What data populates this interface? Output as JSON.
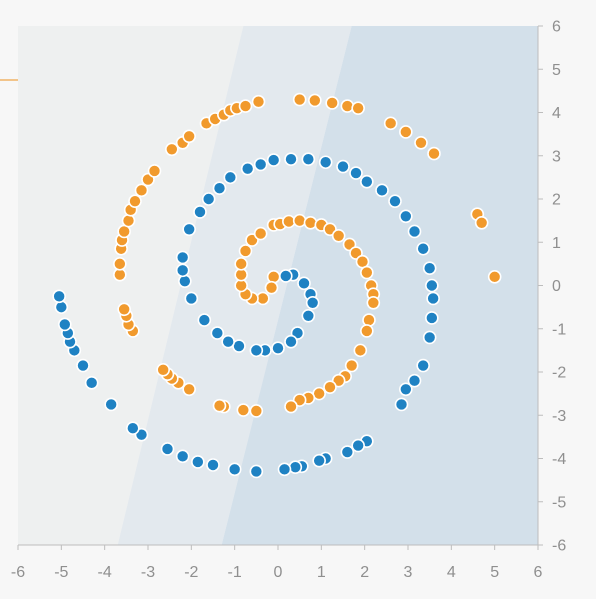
{
  "colors": {
    "series_blue": "#1f82c3",
    "series_orange": "#f19a2d",
    "region_light": "#eef0f0",
    "region_mid": "#e3e9ee",
    "region_dark": "#d3e0ea",
    "page_bg": "#f7f7f7",
    "tick_text": "#8f8f8f",
    "axis_stroke": "#bdbdbd",
    "left_accent": "#f2c48a"
  },
  "chart_data": {
    "type": "scatter",
    "title": "",
    "xlabel": "",
    "ylabel": "",
    "xlim": [
      -6,
      6
    ],
    "ylim": [
      -6,
      6
    ],
    "x_ticks": [
      "-6",
      "-5",
      "-4",
      "-3",
      "-2",
      "-1",
      "0",
      "1",
      "2",
      "3",
      "4",
      "5",
      "6"
    ],
    "y_ticks": [
      "6",
      "5",
      "4",
      "3",
      "2",
      "1",
      "0",
      "-1",
      "-2",
      "-3",
      "-4",
      "-5",
      "-6"
    ],
    "x_axis_position": "bottom",
    "y_axis_position": "right",
    "grid": false,
    "legend": "none",
    "background_regions": [
      {
        "description": "light",
        "boundary_x_at_top": -0.8,
        "boundary_x_at_bottom": -3.7
      },
      {
        "description": "mid",
        "boundary_x_at_top": 1.7,
        "boundary_x_at_bottom": -1.3
      },
      {
        "description": "dark",
        "boundary_x_at_top": 6.0,
        "boundary_x_at_bottom": 6.0
      }
    ],
    "series": [
      {
        "color": "#1f82c3",
        "points": [
          [
            0.35,
            0.25
          ],
          [
            0.18,
            0.22
          ],
          [
            0.6,
            0.05
          ],
          [
            0.75,
            -0.2
          ],
          [
            0.8,
            -0.4
          ],
          [
            0.7,
            -0.7
          ],
          [
            0.45,
            -1.1
          ],
          [
            0.3,
            -1.3
          ],
          [
            0,
            -1.45
          ],
          [
            -0.3,
            -1.5
          ],
          [
            -0.5,
            -1.5
          ],
          [
            -0.9,
            -1.4
          ],
          [
            -1.15,
            -1.3
          ],
          [
            -1.4,
            -1.1
          ],
          [
            -1.7,
            -0.8
          ],
          [
            -2,
            -0.3
          ],
          [
            -2.15,
            0.1
          ],
          [
            -2.2,
            0.35
          ],
          [
            -2.2,
            0.65
          ],
          [
            -2.05,
            1.3
          ],
          [
            -1.8,
            1.7
          ],
          [
            -1.6,
            2
          ],
          [
            -1.35,
            2.25
          ],
          [
            -1.1,
            2.5
          ],
          [
            -0.7,
            2.7
          ],
          [
            -0.4,
            2.8
          ],
          [
            -0.1,
            2.9
          ],
          [
            0.3,
            2.92
          ],
          [
            0.7,
            2.92
          ],
          [
            1.1,
            2.85
          ],
          [
            1.5,
            2.75
          ],
          [
            1.8,
            2.6
          ],
          [
            2.05,
            2.4
          ],
          [
            2.4,
            2.2
          ],
          [
            2.7,
            1.95
          ],
          [
            2.95,
            1.6
          ],
          [
            3.15,
            1.25
          ],
          [
            3.35,
            0.85
          ],
          [
            3.5,
            0.4
          ],
          [
            3.55,
            0
          ],
          [
            3.58,
            -0.3
          ],
          [
            3.55,
            -0.75
          ],
          [
            3.5,
            -1.2
          ],
          [
            3.35,
            -1.85
          ],
          [
            3.15,
            -2.2
          ],
          [
            2.95,
            -2.4
          ],
          [
            2.85,
            -2.75
          ],
          [
            2.05,
            -3.6
          ],
          [
            1.85,
            -3.7
          ],
          [
            1.6,
            -3.85
          ],
          [
            1.1,
            -4
          ],
          [
            0.95,
            -4.05
          ],
          [
            0.55,
            -4.18
          ],
          [
            0.4,
            -4.2
          ],
          [
            0.15,
            -4.25
          ],
          [
            -0.5,
            -4.3
          ],
          [
            -1,
            -4.25
          ],
          [
            -1.5,
            -4.15
          ],
          [
            -1.85,
            -4.08
          ],
          [
            -2.2,
            -3.95
          ],
          [
            -2.55,
            -3.78
          ],
          [
            -3.15,
            -3.45
          ],
          [
            -3.35,
            -3.3
          ],
          [
            -3.85,
            -2.75
          ],
          [
            -4.3,
            -2.25
          ],
          [
            -4.5,
            -1.85
          ],
          [
            -4.7,
            -1.5
          ],
          [
            -4.8,
            -1.3
          ],
          [
            -4.85,
            -1.1
          ],
          [
            -4.92,
            -0.9
          ],
          [
            -5,
            -0.5
          ],
          [
            -5.05,
            -0.25
          ]
        ]
      },
      {
        "color": "#f19a2d",
        "points": [
          [
            -0.1,
            0.2
          ],
          [
            -0.15,
            -0.05
          ],
          [
            -0.35,
            -0.3
          ],
          [
            -0.6,
            -0.3
          ],
          [
            -0.75,
            -0.2
          ],
          [
            -0.85,
            0
          ],
          [
            -0.85,
            0.25
          ],
          [
            -0.85,
            0.5
          ],
          [
            -0.75,
            0.8
          ],
          [
            -0.6,
            1.05
          ],
          [
            -0.4,
            1.2
          ],
          [
            -0.1,
            1.4
          ],
          [
            0.05,
            1.42
          ],
          [
            0.25,
            1.48
          ],
          [
            0.5,
            1.5
          ],
          [
            0.75,
            1.45
          ],
          [
            1,
            1.4
          ],
          [
            1.2,
            1.3
          ],
          [
            1.4,
            1.15
          ],
          [
            1.65,
            0.95
          ],
          [
            1.8,
            0.75
          ],
          [
            1.95,
            0.55
          ],
          [
            2.05,
            0.3
          ],
          [
            2.15,
            0
          ],
          [
            2.2,
            -0.2
          ],
          [
            2.2,
            -0.4
          ],
          [
            2.1,
            -0.8
          ],
          [
            2.05,
            -1.05
          ],
          [
            1.9,
            -1.5
          ],
          [
            1.7,
            -1.85
          ],
          [
            1.55,
            -2.1
          ],
          [
            1.4,
            -2.2
          ],
          [
            1.2,
            -2.35
          ],
          [
            0.95,
            -2.5
          ],
          [
            0.7,
            -2.6
          ],
          [
            0.5,
            -2.65
          ],
          [
            0.3,
            -2.8
          ],
          [
            -0.5,
            -2.9
          ],
          [
            -0.8,
            -2.88
          ],
          [
            -1.25,
            -2.8
          ],
          [
            -1.35,
            -2.78
          ],
          [
            -2.05,
            -2.4
          ],
          [
            -2.3,
            -2.25
          ],
          [
            -2.45,
            -2.15
          ],
          [
            -2.55,
            -2.05
          ],
          [
            -2.65,
            -1.95
          ],
          [
            -3.35,
            -1.05
          ],
          [
            -3.45,
            -0.9
          ],
          [
            -3.5,
            -0.7
          ],
          [
            -3.55,
            -0.55
          ],
          [
            -3.65,
            0.25
          ],
          [
            -3.65,
            0.5
          ],
          [
            -3.62,
            0.85
          ],
          [
            -3.6,
            1.05
          ],
          [
            -3.55,
            1.25
          ],
          [
            -3.45,
            1.5
          ],
          [
            -3.4,
            1.75
          ],
          [
            -3.3,
            1.95
          ],
          [
            -3.15,
            2.2
          ],
          [
            -3,
            2.45
          ],
          [
            -2.85,
            2.65
          ],
          [
            -2.45,
            3.15
          ],
          [
            -2.2,
            3.3
          ],
          [
            -2.05,
            3.45
          ],
          [
            -1.65,
            3.75
          ],
          [
            -1.45,
            3.85
          ],
          [
            -1.25,
            3.95
          ],
          [
            -1.1,
            4.05
          ],
          [
            -0.95,
            4.1
          ],
          [
            -0.75,
            4.15
          ],
          [
            -0.45,
            4.25
          ],
          [
            0.5,
            4.3
          ],
          [
            0.85,
            4.28
          ],
          [
            1.25,
            4.22
          ],
          [
            1.6,
            4.15
          ],
          [
            1.85,
            4.1
          ],
          [
            2.6,
            3.75
          ],
          [
            2.95,
            3.55
          ],
          [
            3.3,
            3.3
          ],
          [
            3.6,
            3.05
          ],
          [
            4.6,
            1.65
          ],
          [
            4.7,
            1.45
          ],
          [
            5,
            0.2
          ]
        ]
      }
    ]
  }
}
